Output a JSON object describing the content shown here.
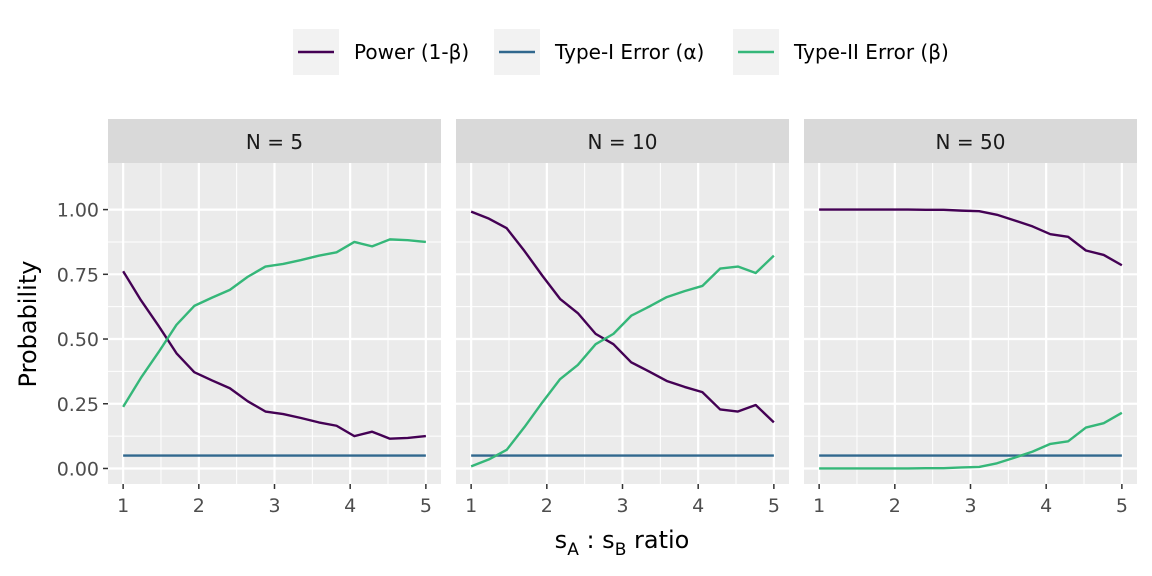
{
  "chart_data": {
    "type": "line",
    "facet_label_prefix": "N = ",
    "facets": [
      {
        "label": "N = 5",
        "series": [
          {
            "name": "Power (1-β)",
            "values": [
              0.762,
              0.65,
              0.55,
              0.445,
              0.372,
              0.34,
              0.31,
              0.26,
              0.22,
              0.21,
              0.195,
              0.178,
              0.165,
              0.125,
              0.142,
              0.115,
              0.118,
              0.125
            ]
          },
          {
            "name": "Type-I Error (α)",
            "values": [
              0.05,
              0.05,
              0.05,
              0.05,
              0.05,
              0.05,
              0.05,
              0.05,
              0.05,
              0.05,
              0.05,
              0.05,
              0.05,
              0.05,
              0.05,
              0.05,
              0.05,
              0.05
            ]
          },
          {
            "name": "Type-II Error (β)",
            "values": [
              0.238,
              0.35,
              0.45,
              0.555,
              0.628,
              0.66,
              0.69,
              0.74,
              0.78,
              0.79,
              0.805,
              0.822,
              0.835,
              0.875,
              0.858,
              0.885,
              0.882,
              0.875
            ]
          }
        ]
      },
      {
        "label": "N = 10",
        "series": [
          {
            "name": "Power (1-β)",
            "values": [
              0.992,
              0.965,
              0.928,
              0.84,
              0.745,
              0.655,
              0.6,
              0.52,
              0.48,
              0.41,
              0.375,
              0.338,
              0.315,
              0.295,
              0.228,
              0.22,
              0.245,
              0.178
            ]
          },
          {
            "name": "Type-I Error (α)",
            "values": [
              0.05,
              0.05,
              0.05,
              0.05,
              0.05,
              0.05,
              0.05,
              0.05,
              0.05,
              0.05,
              0.05,
              0.05,
              0.05,
              0.05,
              0.05,
              0.05,
              0.05,
              0.05
            ]
          },
          {
            "name": "Type-II Error (β)",
            "values": [
              0.008,
              0.035,
              0.072,
              0.16,
              0.255,
              0.345,
              0.4,
              0.48,
              0.52,
              0.59,
              0.625,
              0.662,
              0.685,
              0.705,
              0.772,
              0.78,
              0.755,
              0.822
            ]
          }
        ]
      },
      {
        "label": "N = 50",
        "series": [
          {
            "name": "Power (1-β)",
            "values": [
              1.0,
              1.0,
              1.0,
              1.0,
              1.0,
              1.0,
              0.999,
              0.999,
              0.996,
              0.994,
              0.98,
              0.958,
              0.935,
              0.905,
              0.895,
              0.842,
              0.825,
              0.785
            ]
          },
          {
            "name": "Type-I Error (α)",
            "values": [
              0.05,
              0.05,
              0.05,
              0.05,
              0.05,
              0.05,
              0.05,
              0.05,
              0.05,
              0.05,
              0.05,
              0.05,
              0.05,
              0.05,
              0.05,
              0.05,
              0.05,
              0.05
            ]
          },
          {
            "name": "Type-II Error (β)",
            "values": [
              0.0,
              0.0,
              0.0,
              0.0,
              0.0,
              0.0,
              0.001,
              0.001,
              0.004,
              0.006,
              0.02,
              0.042,
              0.065,
              0.095,
              0.105,
              0.158,
              0.175,
              0.215
            ]
          }
        ]
      }
    ],
    "x": [
      1.0,
      1.235,
      1.47,
      1.705,
      1.94,
      2.175,
      2.41,
      2.645,
      2.88,
      3.115,
      3.35,
      3.585,
      3.82,
      4.055,
      4.29,
      4.525,
      4.76,
      5.0
    ],
    "xlabel": {
      "base1": "s",
      "sub1": "A",
      "mid": " : ",
      "base2": "s",
      "sub2": "B",
      "tail": " ratio"
    },
    "ylabel": "Probability",
    "xlim": [
      0.8,
      5.2
    ],
    "ylim": [
      -0.06,
      1.18
    ],
    "x_ticks": [
      1,
      2,
      3,
      4,
      5
    ],
    "x_tick_labels": [
      "1",
      "2",
      "3",
      "4",
      "5"
    ],
    "y_ticks": [
      0,
      0.25,
      0.5,
      0.75,
      1
    ],
    "y_tick_labels": [
      "0.00",
      "0.25",
      "0.50",
      "0.75",
      "1.00"
    ],
    "legend": {
      "position": "top",
      "entries": [
        "Power (1-β)",
        "Type-I Error (α)",
        "Type-II Error (β)"
      ]
    },
    "colors": {
      "Power (1-β)": "#440154",
      "Type-I Error (α)": "#31688e",
      "Type-II Error (β)": "#35b779"
    },
    "grid": true,
    "panel_background": "#ebebeb",
    "strip_background": "#d9d9d9"
  }
}
